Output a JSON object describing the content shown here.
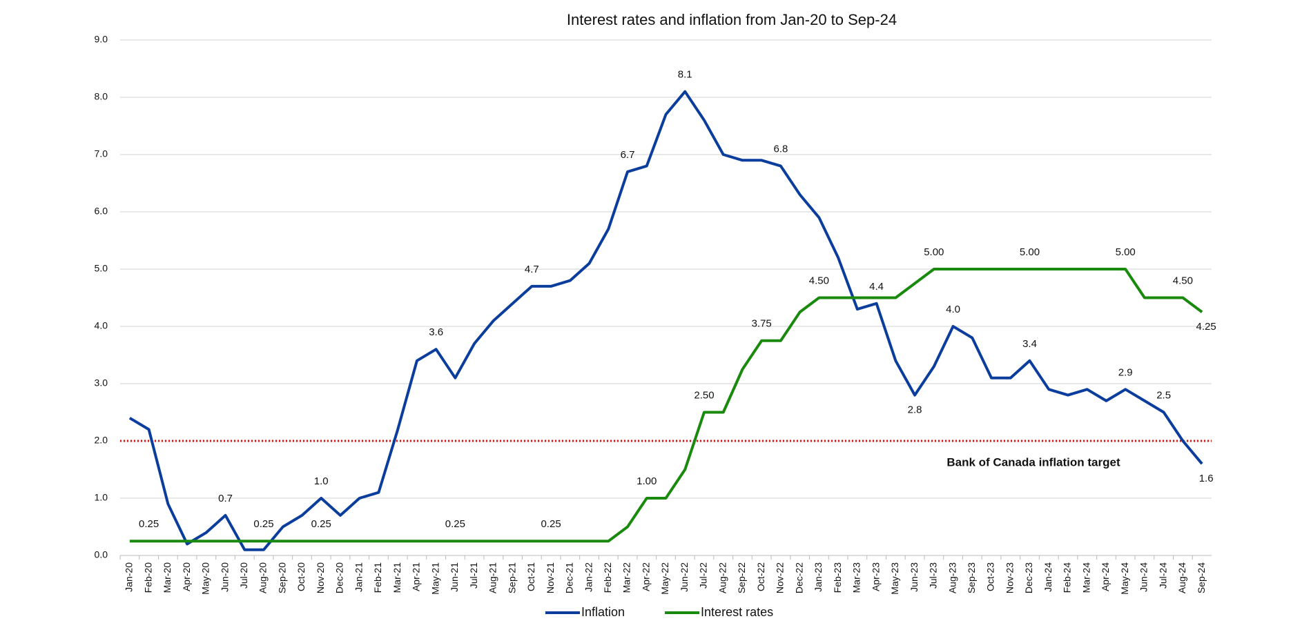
{
  "chart_data": {
    "type": "line",
    "title": "Interest rates and inflation from Jan-20 to Sep-24",
    "categories": [
      "Jan-20",
      "Feb-20",
      "Mar-20",
      "Apr-20",
      "May-20",
      "Jun-20",
      "Jul-20",
      "Aug-20",
      "Sep-20",
      "Oct-20",
      "Nov-20",
      "Dec-20",
      "Jan-21",
      "Feb-21",
      "Mar-21",
      "Apr-21",
      "May-21",
      "Jun-21",
      "Jul-21",
      "Aug-21",
      "Sep-21",
      "Oct-21",
      "Nov-21",
      "Dec-21",
      "Jan-22",
      "Feb-22",
      "Mar-22",
      "Apr-22",
      "May-22",
      "Jun-22",
      "Jul-22",
      "Aug-22",
      "Sep-22",
      "Oct-22",
      "Nov-22",
      "Dec-22",
      "Jan-23",
      "Feb-23",
      "Mar-23",
      "Apr-23",
      "May-23",
      "Jun-23",
      "Jul-23",
      "Aug-23",
      "Sep-23",
      "Oct-23",
      "Nov-23",
      "Dec-23",
      "Jan-24",
      "Feb-24",
      "Mar-24",
      "Apr-24",
      "May-24",
      "Jun-24",
      "Jul-24",
      "Aug-24",
      "Sep-24"
    ],
    "series": [
      {
        "name": "Inflation",
        "color": "#0b3d9c",
        "values": [
          2.4,
          2.2,
          0.9,
          0.2,
          0.4,
          0.7,
          0.1,
          0.1,
          0.5,
          0.7,
          1.0,
          0.7,
          1.0,
          1.1,
          2.2,
          3.4,
          3.6,
          3.1,
          3.7,
          4.1,
          4.4,
          4.7,
          4.7,
          4.8,
          5.1,
          5.7,
          6.7,
          6.8,
          7.7,
          8.1,
          7.6,
          7.0,
          6.9,
          6.9,
          6.8,
          6.3,
          5.9,
          5.2,
          4.3,
          4.4,
          3.4,
          2.8,
          3.3,
          4.0,
          3.8,
          3.1,
          3.1,
          3.4,
          2.9,
          2.8,
          2.9,
          2.7,
          2.9,
          2.7,
          2.5,
          2.0,
          1.6
        ],
        "value_labels": [
          null,
          null,
          null,
          null,
          null,
          "0.7",
          null,
          null,
          null,
          null,
          "1.0",
          null,
          null,
          null,
          null,
          null,
          "3.6",
          null,
          null,
          null,
          null,
          "4.7",
          null,
          null,
          null,
          null,
          "6.7",
          null,
          null,
          "8.1",
          null,
          null,
          null,
          null,
          "6.8",
          null,
          null,
          null,
          null,
          "4.4",
          null,
          "2.8",
          null,
          "4.0",
          null,
          null,
          null,
          "3.4",
          null,
          null,
          null,
          null,
          "2.9",
          null,
          "2.5",
          null,
          "1.6"
        ]
      },
      {
        "name": "Interest rates",
        "color": "#1a8a0e",
        "values": [
          0.25,
          0.25,
          0.25,
          0.25,
          0.25,
          0.25,
          0.25,
          0.25,
          0.25,
          0.25,
          0.25,
          0.25,
          0.25,
          0.25,
          0.25,
          0.25,
          0.25,
          0.25,
          0.25,
          0.25,
          0.25,
          0.25,
          0.25,
          0.25,
          0.25,
          0.25,
          0.5,
          1.0,
          1.0,
          1.5,
          2.5,
          2.5,
          3.25,
          3.75,
          3.75,
          4.25,
          4.5,
          4.5,
          4.5,
          4.5,
          4.5,
          4.75,
          5.0,
          5.0,
          5.0,
          5.0,
          5.0,
          5.0,
          5.0,
          5.0,
          5.0,
          5.0,
          5.0,
          4.5,
          4.5,
          4.5,
          4.25
        ],
        "value_labels": [
          null,
          "0.25",
          null,
          null,
          null,
          null,
          null,
          "0.25",
          null,
          null,
          "0.25",
          null,
          null,
          null,
          null,
          null,
          null,
          "0.25",
          null,
          null,
          null,
          null,
          "0.25",
          null,
          null,
          null,
          null,
          "1.00",
          null,
          null,
          "2.50",
          null,
          null,
          "3.75",
          null,
          null,
          "4.50",
          null,
          null,
          null,
          null,
          null,
          "5.00",
          null,
          null,
          null,
          null,
          "5.00",
          null,
          null,
          null,
          null,
          "5.00",
          null,
          null,
          "4.50",
          "4.25"
        ]
      }
    ],
    "ylim": [
      0,
      9
    ],
    "yticks": [
      {
        "value": 0,
        "label": "0.0"
      },
      {
        "value": 1,
        "label": "1.0"
      },
      {
        "value": 2,
        "label": "2.0"
      },
      {
        "value": 3,
        "label": "3.0"
      },
      {
        "value": 4,
        "label": "4.0"
      },
      {
        "value": 5,
        "label": "5.0"
      },
      {
        "value": 6,
        "label": "6.0"
      },
      {
        "value": 7,
        "label": "7.0"
      },
      {
        "value": 8,
        "label": "8.0"
      },
      {
        "value": 9,
        "label": "9.0"
      }
    ],
    "grid": true,
    "legend": "bottom",
    "reference_line": {
      "value": 2,
      "label": "Bank of Canada inflation target",
      "color": "#e01010"
    }
  }
}
